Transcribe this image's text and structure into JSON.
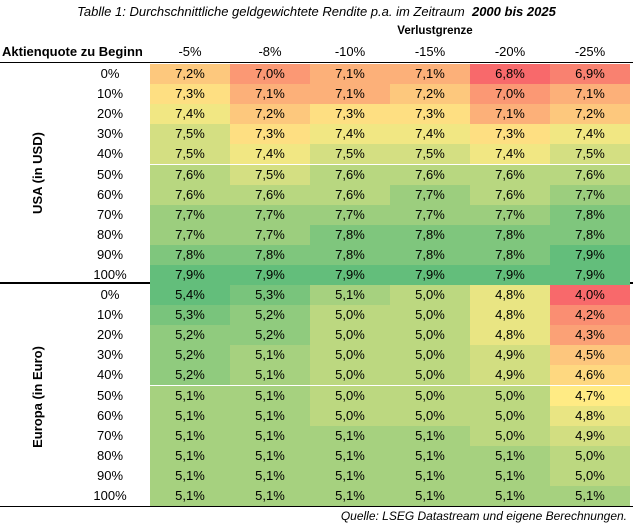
{
  "title_prefix": "Tablle 1: Durchschnittliche geldgewichtete Rendite p.a. im Zeitraum",
  "title_period": "2000 bis 2025",
  "subheader": "Verlustgrenze",
  "row_header": "Aktienquote zu Beginn",
  "columns": [
    "-5%",
    "-8%",
    "-10%",
    "-15%",
    "-20%",
    "-25%"
  ],
  "sections": [
    {
      "label": "USA (in USD)",
      "rows": [
        {
          "label": "0%",
          "values": [
            "7,2%",
            "7,0%",
            "7,1%",
            "7,1%",
            "6,8%",
            "6,9%"
          ]
        },
        {
          "label": "10%",
          "values": [
            "7,3%",
            "7,1%",
            "7,1%",
            "7,2%",
            "7,0%",
            "7,1%"
          ]
        },
        {
          "label": "20%",
          "values": [
            "7,4%",
            "7,2%",
            "7,3%",
            "7,3%",
            "7,1%",
            "7,2%"
          ]
        },
        {
          "label": "30%",
          "values": [
            "7,5%",
            "7,3%",
            "7,4%",
            "7,4%",
            "7,3%",
            "7,4%"
          ]
        },
        {
          "label": "40%",
          "values": [
            "7,5%",
            "7,4%",
            "7,5%",
            "7,5%",
            "7,4%",
            "7,5%"
          ]
        },
        {
          "label": "50%",
          "values": [
            "7,6%",
            "7,5%",
            "7,6%",
            "7,6%",
            "7,6%",
            "7,6%"
          ]
        },
        {
          "label": "60%",
          "values": [
            "7,6%",
            "7,6%",
            "7,6%",
            "7,7%",
            "7,6%",
            "7,7%"
          ]
        },
        {
          "label": "70%",
          "values": [
            "7,7%",
            "7,7%",
            "7,7%",
            "7,7%",
            "7,7%",
            "7,8%"
          ]
        },
        {
          "label": "80%",
          "values": [
            "7,7%",
            "7,7%",
            "7,8%",
            "7,8%",
            "7,8%",
            "7,8%"
          ]
        },
        {
          "label": "90%",
          "values": [
            "7,8%",
            "7,8%",
            "7,8%",
            "7,8%",
            "7,8%",
            "7,9%"
          ]
        },
        {
          "label": "100%",
          "values": [
            "7,9%",
            "7,9%",
            "7,9%",
            "7,9%",
            "7,9%",
            "7,9%"
          ]
        }
      ]
    },
    {
      "label": "Europa (in Euro)",
      "rows": [
        {
          "label": "0%",
          "values": [
            "5,4%",
            "5,3%",
            "5,1%",
            "5,0%",
            "4,8%",
            "4,0%"
          ]
        },
        {
          "label": "10%",
          "values": [
            "5,3%",
            "5,2%",
            "5,0%",
            "5,0%",
            "4,8%",
            "4,2%"
          ]
        },
        {
          "label": "20%",
          "values": [
            "5,2%",
            "5,2%",
            "5,0%",
            "5,0%",
            "4,8%",
            "4,3%"
          ]
        },
        {
          "label": "30%",
          "values": [
            "5,2%",
            "5,1%",
            "5,0%",
            "5,0%",
            "4,9%",
            "4,5%"
          ]
        },
        {
          "label": "40%",
          "values": [
            "5,2%",
            "5,1%",
            "5,0%",
            "5,0%",
            "4,9%",
            "4,6%"
          ]
        },
        {
          "label": "50%",
          "values": [
            "5,1%",
            "5,1%",
            "5,0%",
            "5,0%",
            "5,0%",
            "4,7%"
          ]
        },
        {
          "label": "60%",
          "values": [
            "5,1%",
            "5,1%",
            "5,0%",
            "5,0%",
            "5,0%",
            "4,8%"
          ]
        },
        {
          "label": "70%",
          "values": [
            "5,1%",
            "5,1%",
            "5,1%",
            "5,1%",
            "5,0%",
            "4,9%"
          ]
        },
        {
          "label": "80%",
          "values": [
            "5,1%",
            "5,1%",
            "5,1%",
            "5,1%",
            "5,1%",
            "5,0%"
          ]
        },
        {
          "label": "90%",
          "values": [
            "5,1%",
            "5,1%",
            "5,1%",
            "5,1%",
            "5,1%",
            "5,0%"
          ]
        },
        {
          "label": "100%",
          "values": [
            "5,1%",
            "5,1%",
            "5,1%",
            "5,1%",
            "5,1%",
            "5,1%"
          ]
        }
      ]
    }
  ],
  "source": "Quelle: LSEG Datastream und eigene Berechnungen.",
  "colors": {
    "low": "#f8696b",
    "mid": "#ffeb84",
    "high": "#63be7b",
    "rule": "#000000"
  }
}
